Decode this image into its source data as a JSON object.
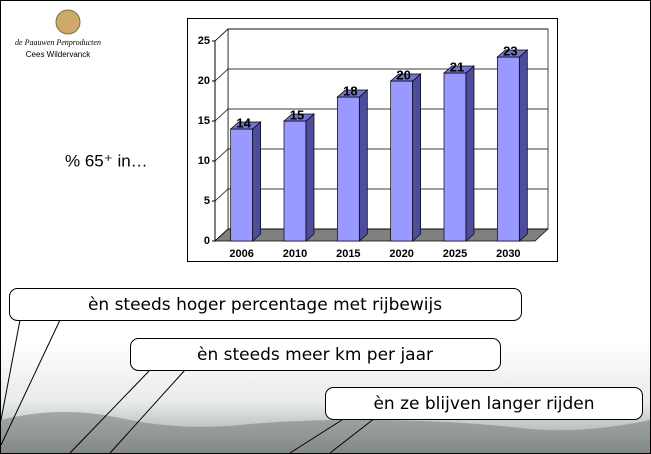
{
  "logo": {
    "name": "de Paauwen Penproducten",
    "author": "Cees Wildervanck"
  },
  "side_label": "% 65⁺ in…",
  "callouts": [
    "èn steeds hoger percentage met rijbewijs",
    "èn steeds meer km per jaar",
    "èn ze blijven langer rijden"
  ],
  "chart_data": {
    "type": "bar",
    "categories": [
      "2006",
      "2010",
      "2015",
      "2020",
      "2025",
      "2030"
    ],
    "values": [
      14,
      15,
      18,
      20,
      21,
      23
    ],
    "color": "#9999ff",
    "ylim": [
      0,
      25
    ],
    "yticks": [
      0,
      5,
      10,
      15,
      20,
      25
    ],
    "grid": true
  }
}
